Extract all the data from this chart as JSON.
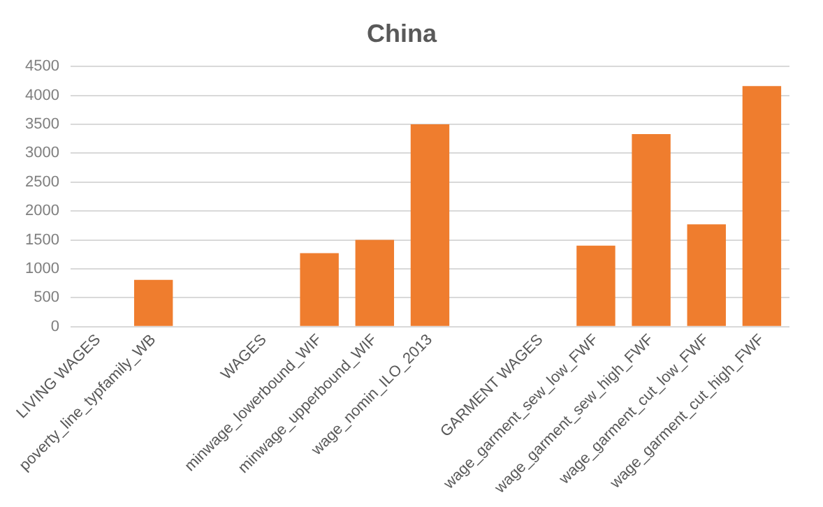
{
  "chart_data": {
    "type": "bar",
    "title": "China",
    "categories": [
      "LIVING WAGES",
      "poverty_line_typfamily_WB",
      null,
      "WAGES",
      "minwage_lowerbound_WIF",
      "minwage_upperbound_WIF",
      "wage_nomin_ILO_2013",
      null,
      "GARMENT WAGES",
      "wage_garment_sew_low_FWF",
      "wage_garment_sew_high_FWF",
      "wage_garment_cut_low_FWF",
      "wage_garment_cut_high_FWF"
    ],
    "values": [
      null,
      810,
      null,
      null,
      1270,
      1500,
      3500,
      null,
      null,
      1400,
      3330,
      1770,
      4160
    ],
    "color": "#ef7d2e",
    "ylim": [
      0,
      4500
    ],
    "yticks": [
      0,
      500,
      1000,
      1500,
      2000,
      2500,
      3000,
      3500,
      4000,
      4500
    ],
    "grid": "y"
  }
}
